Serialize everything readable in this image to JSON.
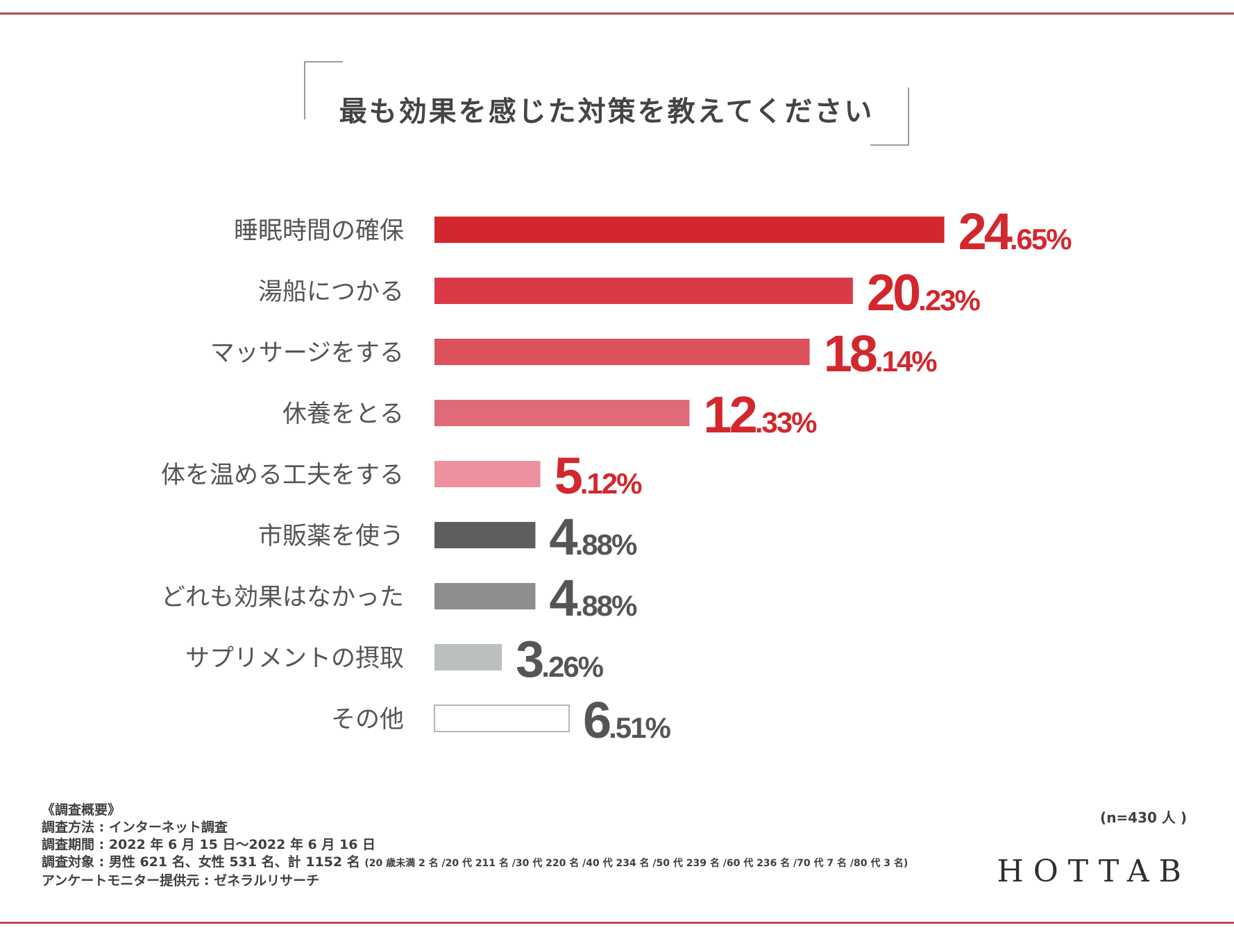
{
  "title": "最も効果を感じた対策を教えてください",
  "chart_data": {
    "type": "bar",
    "orientation": "horizontal",
    "title": "最も効果を感じた対策を教えてください",
    "unit": "%",
    "xlim": [
      0,
      28
    ],
    "categories": [
      "睡眠時間の確保",
      "湯船につかる",
      "マッサージをする",
      "休養をとる",
      "体を温める工夫をする",
      "市販薬を使う",
      "どれも効果はなかった",
      "サプリメントの摂取",
      "その他"
    ],
    "values": [
      24.65,
      20.23,
      18.14,
      12.33,
      5.12,
      4.88,
      4.88,
      3.26,
      6.51
    ],
    "value_int": [
      "24",
      "20",
      "18",
      "12",
      "5",
      "4",
      "4",
      "3",
      "6"
    ],
    "value_frac": [
      ".65%",
      ".23%",
      ".14%",
      ".33%",
      ".12%",
      ".88%",
      ".88%",
      ".26%",
      ".51%"
    ],
    "bar_colors": [
      "#d3272e",
      "#da3a45",
      "#dc515c",
      "#e0697a",
      "#ee919f",
      "#5e5e5e",
      "#8e8e8e",
      "#bcbfbf",
      "#ffffff"
    ],
    "label_colors": [
      "#d3272e",
      "#d3272e",
      "#d3272e",
      "#d3272e",
      "#d3272e",
      "#555555",
      "#555555",
      "#555555",
      "#555555"
    ]
  },
  "notes": {
    "heading": "《調査概要》",
    "method": "調査方法 : インターネット調査",
    "period": "調査期間 : 2022 年 6 月 15 日～2022 年 6 月 16 日",
    "target": "調査対象 : 男性 621 名、女性 531 名、計 1152 名",
    "target_detail": "(20 歳未満 2 名 /20 代 211 名 /30 代 220 名 /40 代 234 名 /50 代 239 名 /60 代 236 名 /70 代 7 名 /80 代 3 名)",
    "provider": "アンケートモニター提供元 : ゼネラルリサーチ"
  },
  "sample_size": "(n=430 人 )",
  "brand": "HOTTAB"
}
